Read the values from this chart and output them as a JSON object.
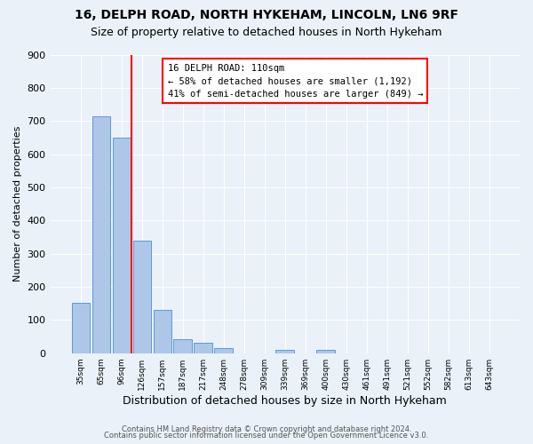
{
  "title": "16, DELPH ROAD, NORTH HYKEHAM, LINCOLN, LN6 9RF",
  "subtitle": "Size of property relative to detached houses in North Hykeham",
  "bar_labels": [
    "35sqm",
    "65sqm",
    "96sqm",
    "126sqm",
    "157sqm",
    "187sqm",
    "217sqm",
    "248sqm",
    "278sqm",
    "309sqm",
    "339sqm",
    "369sqm",
    "400sqm",
    "430sqm",
    "461sqm",
    "491sqm",
    "521sqm",
    "552sqm",
    "582sqm",
    "613sqm",
    "643sqm"
  ],
  "bar_values": [
    152,
    715,
    650,
    340,
    130,
    43,
    32,
    15,
    0,
    0,
    10,
    0,
    10,
    0,
    0,
    0,
    0,
    0,
    0,
    0,
    0
  ],
  "bar_color": "#aec6e8",
  "bar_edge_color": "#5b9bd5",
  "vline_x": 2.5,
  "vline_color": "red",
  "ylabel": "Number of detached properties",
  "xlabel": "Distribution of detached houses by size in North Hykeham",
  "ylim": [
    0,
    900
  ],
  "yticks": [
    0,
    100,
    200,
    300,
    400,
    500,
    600,
    700,
    800,
    900
  ],
  "annotation_box_text": "16 DELPH ROAD: 110sqm\n← 58% of detached houses are smaller (1,192)\n41% of semi-detached houses are larger (849) →",
  "footer1": "Contains HM Land Registry data © Crown copyright and database right 2024.",
  "footer2": "Contains public sector information licensed under the Open Government Licence v3.0.",
  "bg_color": "#eaf1f9",
  "plot_bg_color": "#eaf1f9",
  "title_fontsize": 10,
  "subtitle_fontsize": 9
}
